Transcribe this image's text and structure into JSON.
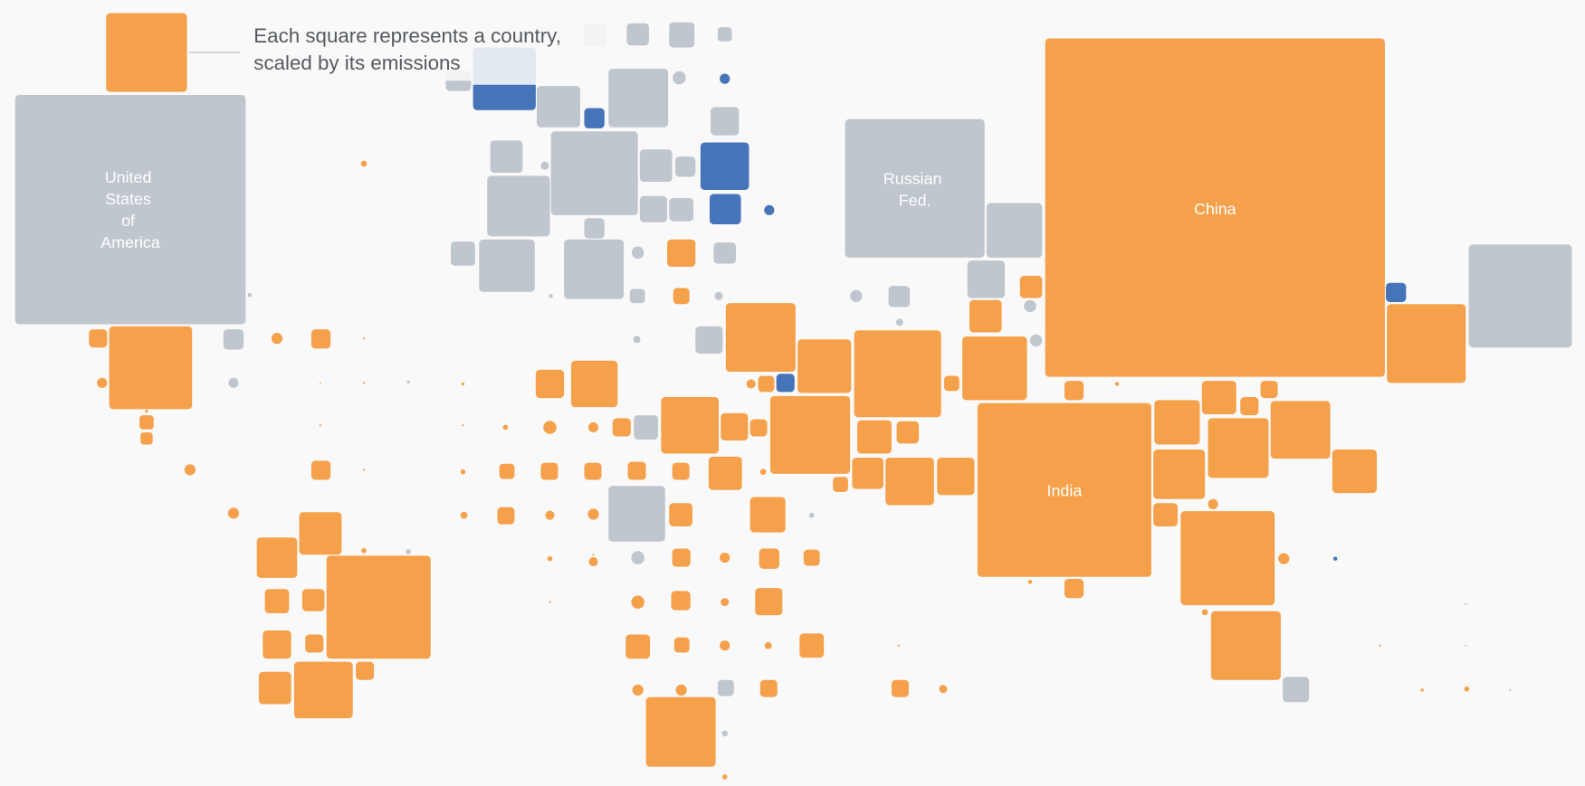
{
  "chart_data": {
    "type": "square-map",
    "title": "",
    "legend": {
      "caption_line1": "Each square represents a country,",
      "caption_line2": "scaled by its emissions"
    },
    "labeled_countries": [
      {
        "name": "United States of America",
        "label_lines": [
          "United",
          "States",
          "of",
          "America"
        ],
        "color": "#bfc6cd"
      },
      {
        "name": "Russian Fed.",
        "label_lines": [
          "Russian",
          "Fed."
        ],
        "color": "#bfc6cd"
      },
      {
        "name": "China",
        "label_lines": [
          "China"
        ],
        "color": "#f5a14b"
      },
      {
        "name": "India",
        "label_lines": [
          "India"
        ],
        "color": "#f5a14b"
      }
    ]
  },
  "colors": {
    "orange": "#f5a14b",
    "gray": "#bfc6cd",
    "blue": "#4674b8",
    "light": "#e3e9f1",
    "faint": "#f1f3f5",
    "background": "#f9f9f9"
  }
}
